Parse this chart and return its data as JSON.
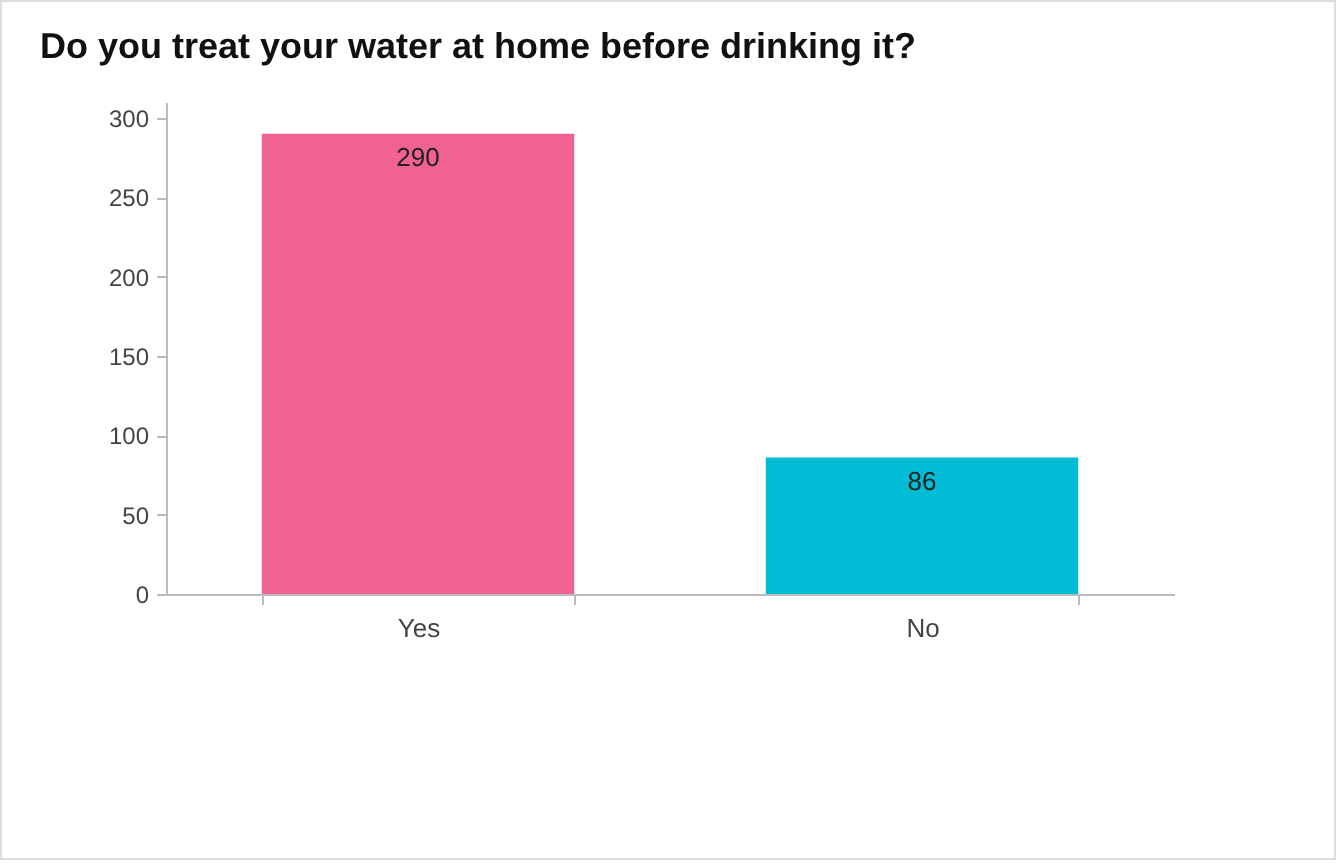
{
  "chart_data": {
    "type": "bar",
    "title": "Do you treat your water at home before drinking it?",
    "categories": [
      "Yes",
      "No"
    ],
    "values": [
      290,
      86
    ],
    "colors": [
      "#f06292",
      "#00bcd4"
    ],
    "ylim": [
      0,
      310
    ],
    "yticks": [
      0,
      50,
      100,
      150,
      200,
      250,
      300
    ],
    "data_labels": true
  }
}
